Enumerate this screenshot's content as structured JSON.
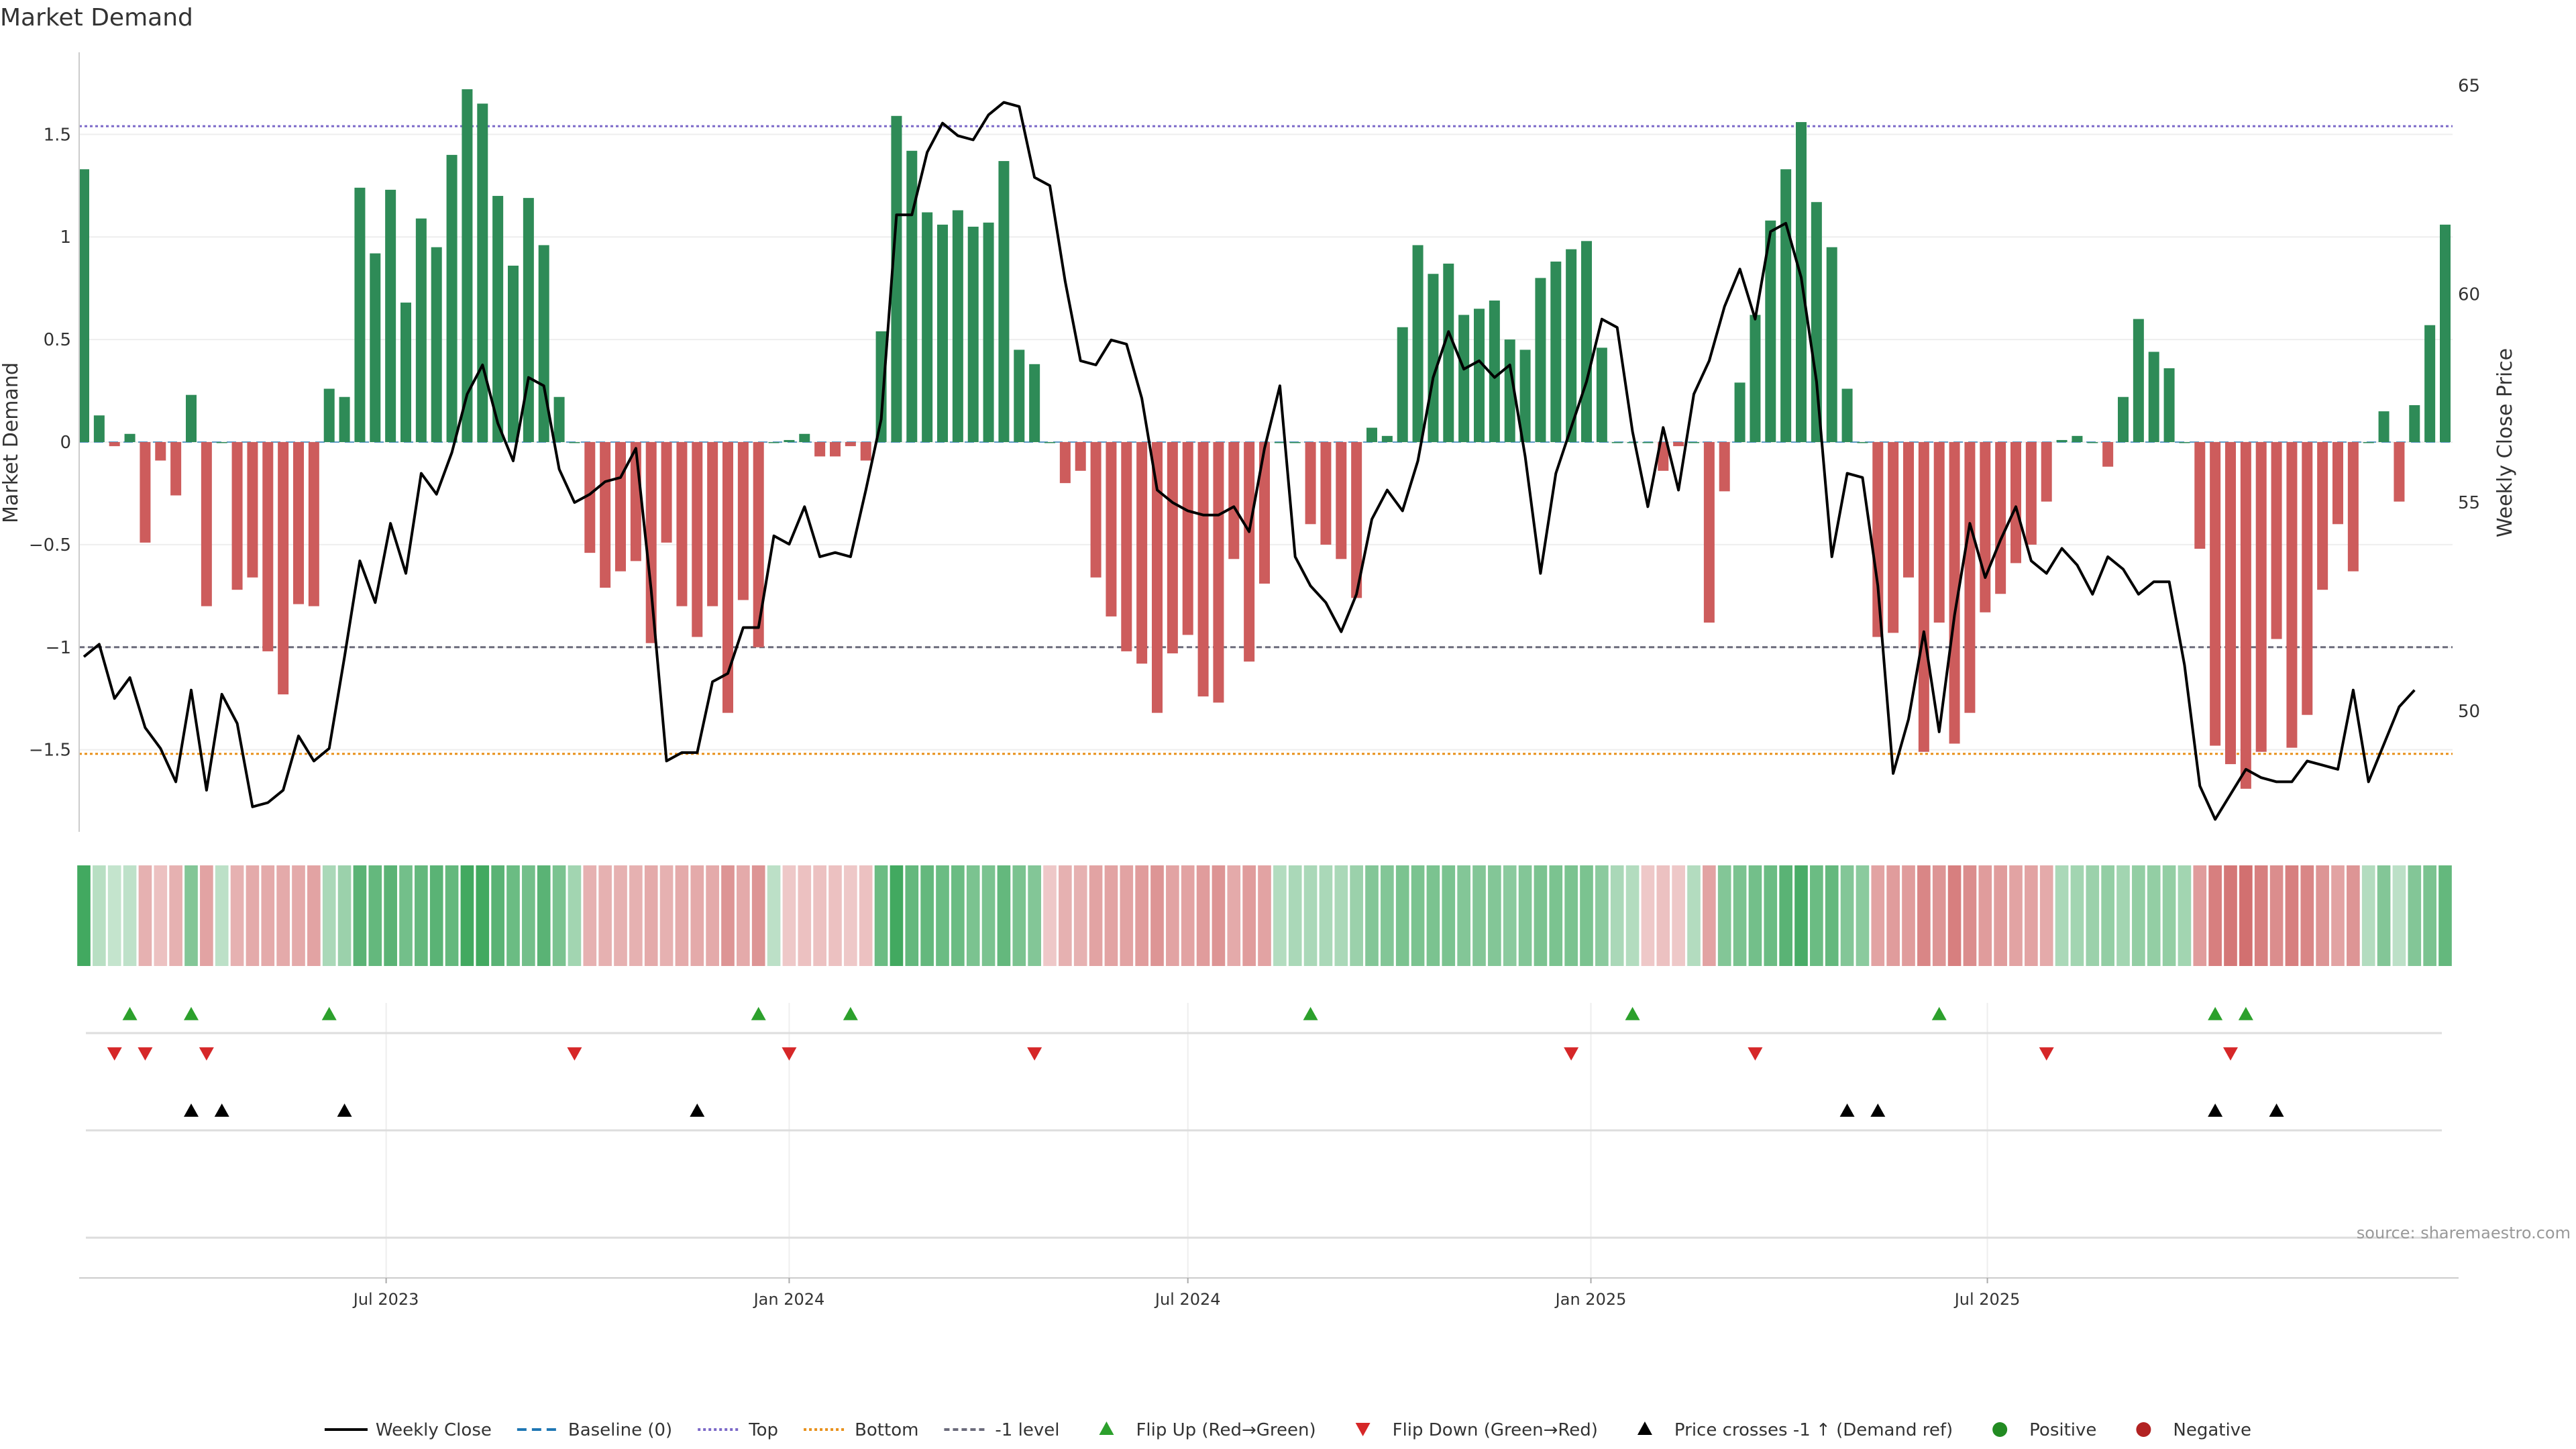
{
  "title": "Market Demand",
  "source": "source: sharemaestro.com",
  "colors": {
    "positive_bar": "#2e8b57",
    "negative_bar": "#cd5c5c",
    "price_line": "#000000",
    "top_line": "#7b68c8",
    "bottom_line": "#e8911c",
    "minus1_line": "#6b6b7b",
    "flip_up": "#2ca02c",
    "flip_down": "#d62728",
    "cross": "#000000",
    "positive_dot": "#228b22",
    "negative_dot": "#b22222"
  },
  "chart_data": {
    "type": "bar",
    "title": "Market Demand",
    "x_start_date": "2023-02-13",
    "x_interval_days": 7,
    "x_ticks": [
      {
        "date": "2023-07-01",
        "label": "Jul 2023"
      },
      {
        "date": "2024-01-01",
        "label": "Jan 2024"
      },
      {
        "date": "2024-07-01",
        "label": "Jul 2024"
      },
      {
        "date": "2025-01-01",
        "label": "Jan 2025"
      },
      {
        "date": "2025-07-01",
        "label": "Jul 2025"
      }
    ],
    "y_left": {
      "label": "Market Demand",
      "ticks": [
        1.5,
        1,
        0.5,
        0,
        -0.5,
        -1,
        -1.5
      ],
      "tick_labels": [
        "1.5",
        "1",
        "0.5",
        "0",
        "−0.5",
        "−1",
        "−1.5"
      ],
      "range": [
        -1.9,
        1.9
      ]
    },
    "y_right": {
      "label": "Weekly Close Price",
      "ticks": [
        65,
        60,
        55,
        50
      ],
      "range": [
        47.1,
        65.8
      ]
    },
    "reference_lines": {
      "top": 1.54,
      "bottom": -1.52,
      "minus1": -1.0,
      "baseline": 0
    },
    "series": [
      {
        "name": "Market Demand",
        "values": [
          1.33,
          0.13,
          -0.02,
          0.04,
          -0.49,
          -0.09,
          -0.26,
          0.23,
          -0.8,
          0,
          -0.72,
          -0.66,
          -1.02,
          -1.23,
          -0.79,
          -0.8,
          0.26,
          0.22,
          1.24,
          0.92,
          1.23,
          0.68,
          1.09,
          0.95,
          1.4,
          1.72,
          1.65,
          1.2,
          0.86,
          1.19,
          0.96,
          0.22,
          0,
          -0.54,
          -0.71,
          -0.63,
          -0.58,
          -0.98,
          -0.49,
          -0.8,
          -0.95,
          -0.8,
          -1.32,
          -0.77,
          -1.0,
          0,
          0.01,
          0.04,
          -0.07,
          -0.07,
          -0.02,
          -0.09,
          0.54,
          1.59,
          1.42,
          1.12,
          1.06,
          1.13,
          1.05,
          1.07,
          1.37,
          0.45,
          0.38,
          0,
          -0.2,
          -0.14,
          -0.66,
          -0.85,
          -1.02,
          -1.08,
          -1.32,
          -1.03,
          -0.94,
          -1.24,
          -1.27,
          -0.57,
          -1.07,
          -0.69,
          0,
          0,
          -0.4,
          -0.5,
          -0.57,
          -0.76,
          0.07,
          0.03,
          0.56,
          0.96,
          0.82,
          0.87,
          0.62,
          0.65,
          0.69,
          0.5,
          0.45,
          0.8,
          0.88,
          0.94,
          0.98,
          0.46,
          0,
          0,
          0,
          -0.14,
          -0.02,
          0,
          -0.88,
          -0.24,
          0.29,
          0.62,
          1.08,
          1.33,
          1.56,
          1.17,
          0.95,
          0.26,
          0,
          -0.95,
          -0.93,
          -0.66,
          -1.51,
          -0.88,
          -1.47,
          -1.32,
          -0.83,
          -0.74,
          -0.59,
          -0.5,
          -0.29,
          0.01,
          0.03,
          0,
          -0.12,
          0.22,
          0.6,
          0.44,
          0.36,
          0,
          -0.52,
          -1.48,
          -1.57,
          -1.69,
          -1.51,
          -0.96,
          -1.49,
          -1.33,
          -0.72,
          -0.4,
          -0.63,
          0,
          0.15,
          -0.29,
          0.18,
          0.57,
          1.06
        ]
      },
      {
        "name": "Weekly Close",
        "values": [
          51.3,
          51.6,
          50.3,
          50.8,
          49.6,
          49.1,
          48.3,
          50.5,
          48.1,
          50.4,
          49.7,
          47.7,
          47.8,
          48.1,
          49.4,
          48.8,
          49.1,
          51.3,
          53.6,
          52.6,
          54.5,
          53.3,
          55.7,
          55.2,
          56.2,
          57.6,
          58.3,
          56.9,
          56.0,
          58.0,
          57.8,
          55.8,
          55.0,
          55.2,
          55.5,
          55.6,
          56.3,
          52.9,
          48.8,
          49.0,
          49.0,
          50.7,
          50.9,
          52.0,
          52.0,
          54.2,
          54.0,
          54.9,
          53.7,
          53.8,
          53.7,
          55.3,
          57.0,
          61.9,
          61.9,
          63.4,
          64.1,
          63.8,
          63.7,
          64.3,
          64.6,
          64.5,
          62.8,
          62.6,
          60.3,
          58.4,
          58.3,
          58.9,
          58.8,
          57.5,
          55.3,
          55.0,
          54.8,
          54.7,
          54.7,
          54.9,
          54.3,
          56.3,
          57.8,
          53.7,
          53.0,
          52.6,
          51.9,
          52.8,
          54.6,
          55.3,
          54.8,
          56.0,
          58.0,
          59.1,
          58.2,
          58.4,
          58.0,
          58.3,
          56.1,
          53.3,
          55.7,
          56.8,
          57.9,
          59.4,
          59.2,
          56.7,
          54.9,
          56.8,
          55.3,
          57.6,
          58.4,
          59.7,
          60.6,
          59.4,
          61.5,
          61.7,
          60.4,
          57.9,
          53.7,
          55.7,
          55.6,
          53.0,
          48.5,
          49.8,
          51.9,
          49.5,
          52.3,
          54.5,
          53.2,
          54.1,
          54.9,
          53.6,
          53.3,
          53.9,
          53.5,
          52.8,
          53.7,
          53.4,
          52.8,
          53.1,
          53.1,
          51.1,
          48.2,
          47.4,
          48.0,
          48.6,
          48.4,
          48.3,
          48.3,
          48.8,
          48.7,
          48.6,
          50.5,
          48.3,
          49.2,
          50.1,
          50.5
        ]
      }
    ],
    "heat_strip": {
      "values": [
        0.95,
        0.22,
        0.15,
        0.18,
        -0.3,
        -0.2,
        -0.3,
        0.55,
        -0.4,
        0.2,
        -0.3,
        -0.35,
        -0.35,
        -0.35,
        -0.35,
        -0.4,
        0.3,
        0.4,
        0.8,
        0.75,
        0.8,
        0.65,
        0.75,
        0.8,
        0.75,
        0.95,
        0.95,
        0.8,
        0.7,
        0.65,
        0.8,
        0.6,
        0.35,
        -0.3,
        -0.3,
        -0.3,
        -0.3,
        -0.35,
        -0.3,
        -0.35,
        -0.35,
        -0.35,
        -0.5,
        -0.35,
        -0.5,
        0.2,
        -0.15,
        -0.2,
        -0.2,
        -0.2,
        -0.15,
        -0.2,
        0.7,
        0.95,
        0.75,
        0.75,
        0.7,
        0.7,
        0.6,
        0.6,
        0.75,
        0.6,
        0.55,
        -0.15,
        -0.3,
        -0.3,
        -0.4,
        -0.4,
        -0.4,
        -0.45,
        -0.5,
        -0.4,
        -0.4,
        -0.45,
        -0.5,
        -0.35,
        -0.45,
        -0.4,
        0.25,
        0.3,
        0.3,
        0.3,
        0.3,
        0.4,
        0.55,
        0.55,
        0.6,
        0.6,
        0.6,
        0.6,
        0.55,
        0.55,
        0.55,
        0.5,
        0.55,
        0.6,
        0.6,
        0.6,
        0.6,
        0.5,
        0.3,
        0.25,
        -0.15,
        -0.2,
        -0.15,
        0.25,
        -0.4,
        0.55,
        0.6,
        0.65,
        0.7,
        0.8,
        0.9,
        0.7,
        0.75,
        0.55,
        0.5,
        -0.4,
        -0.45,
        -0.45,
        -0.6,
        -0.5,
        -0.65,
        -0.55,
        -0.45,
        -0.45,
        -0.4,
        -0.4,
        -0.35,
        0.3,
        0.35,
        0.4,
        0.45,
        0.35,
        0.45,
        0.45,
        0.45,
        0.35,
        -0.45,
        -0.65,
        -0.7,
        -0.75,
        -0.65,
        -0.55,
        -0.65,
        -0.6,
        -0.5,
        -0.4,
        -0.5,
        0.25,
        0.55,
        0.2,
        0.55,
        0.6,
        0.75
      ]
    },
    "flip_up_weeks": [
      3,
      7,
      16,
      44,
      50,
      80,
      101,
      121,
      139,
      141
    ],
    "flip_down_weeks": [
      2,
      4,
      8,
      32,
      46,
      62,
      97,
      109,
      128,
      140
    ],
    "price_cross_weeks": [
      7,
      9,
      17,
      40,
      115,
      117,
      139,
      143
    ]
  },
  "legend": [
    {
      "label": "Weekly Close",
      "kind": "line",
      "color": "#000000",
      "dash": ""
    },
    {
      "label": "Baseline (0)",
      "kind": "line",
      "color": "#1f77b4",
      "dash": "14,8"
    },
    {
      "label": "Top",
      "kind": "line",
      "color": "#7b68c8",
      "dash": "4,4"
    },
    {
      "label": "Bottom",
      "kind": "line",
      "color": "#e8911c",
      "dash": "4,4"
    },
    {
      "label": "-1 level",
      "kind": "line",
      "color": "#6b6b7b",
      "dash": "8,5"
    },
    {
      "label": "Flip Up (Red→Green)",
      "kind": "tri-up",
      "color": "#2ca02c"
    },
    {
      "label": "Flip Down (Green→Red)",
      "kind": "tri-down",
      "color": "#d62728"
    },
    {
      "label": "Price crosses -1 ↑ (Demand ref)",
      "kind": "tri-up",
      "color": "#000000"
    },
    {
      "label": "Positive",
      "kind": "dot",
      "color": "#228b22"
    },
    {
      "label": "Negative",
      "kind": "dot",
      "color": "#b22222"
    }
  ]
}
